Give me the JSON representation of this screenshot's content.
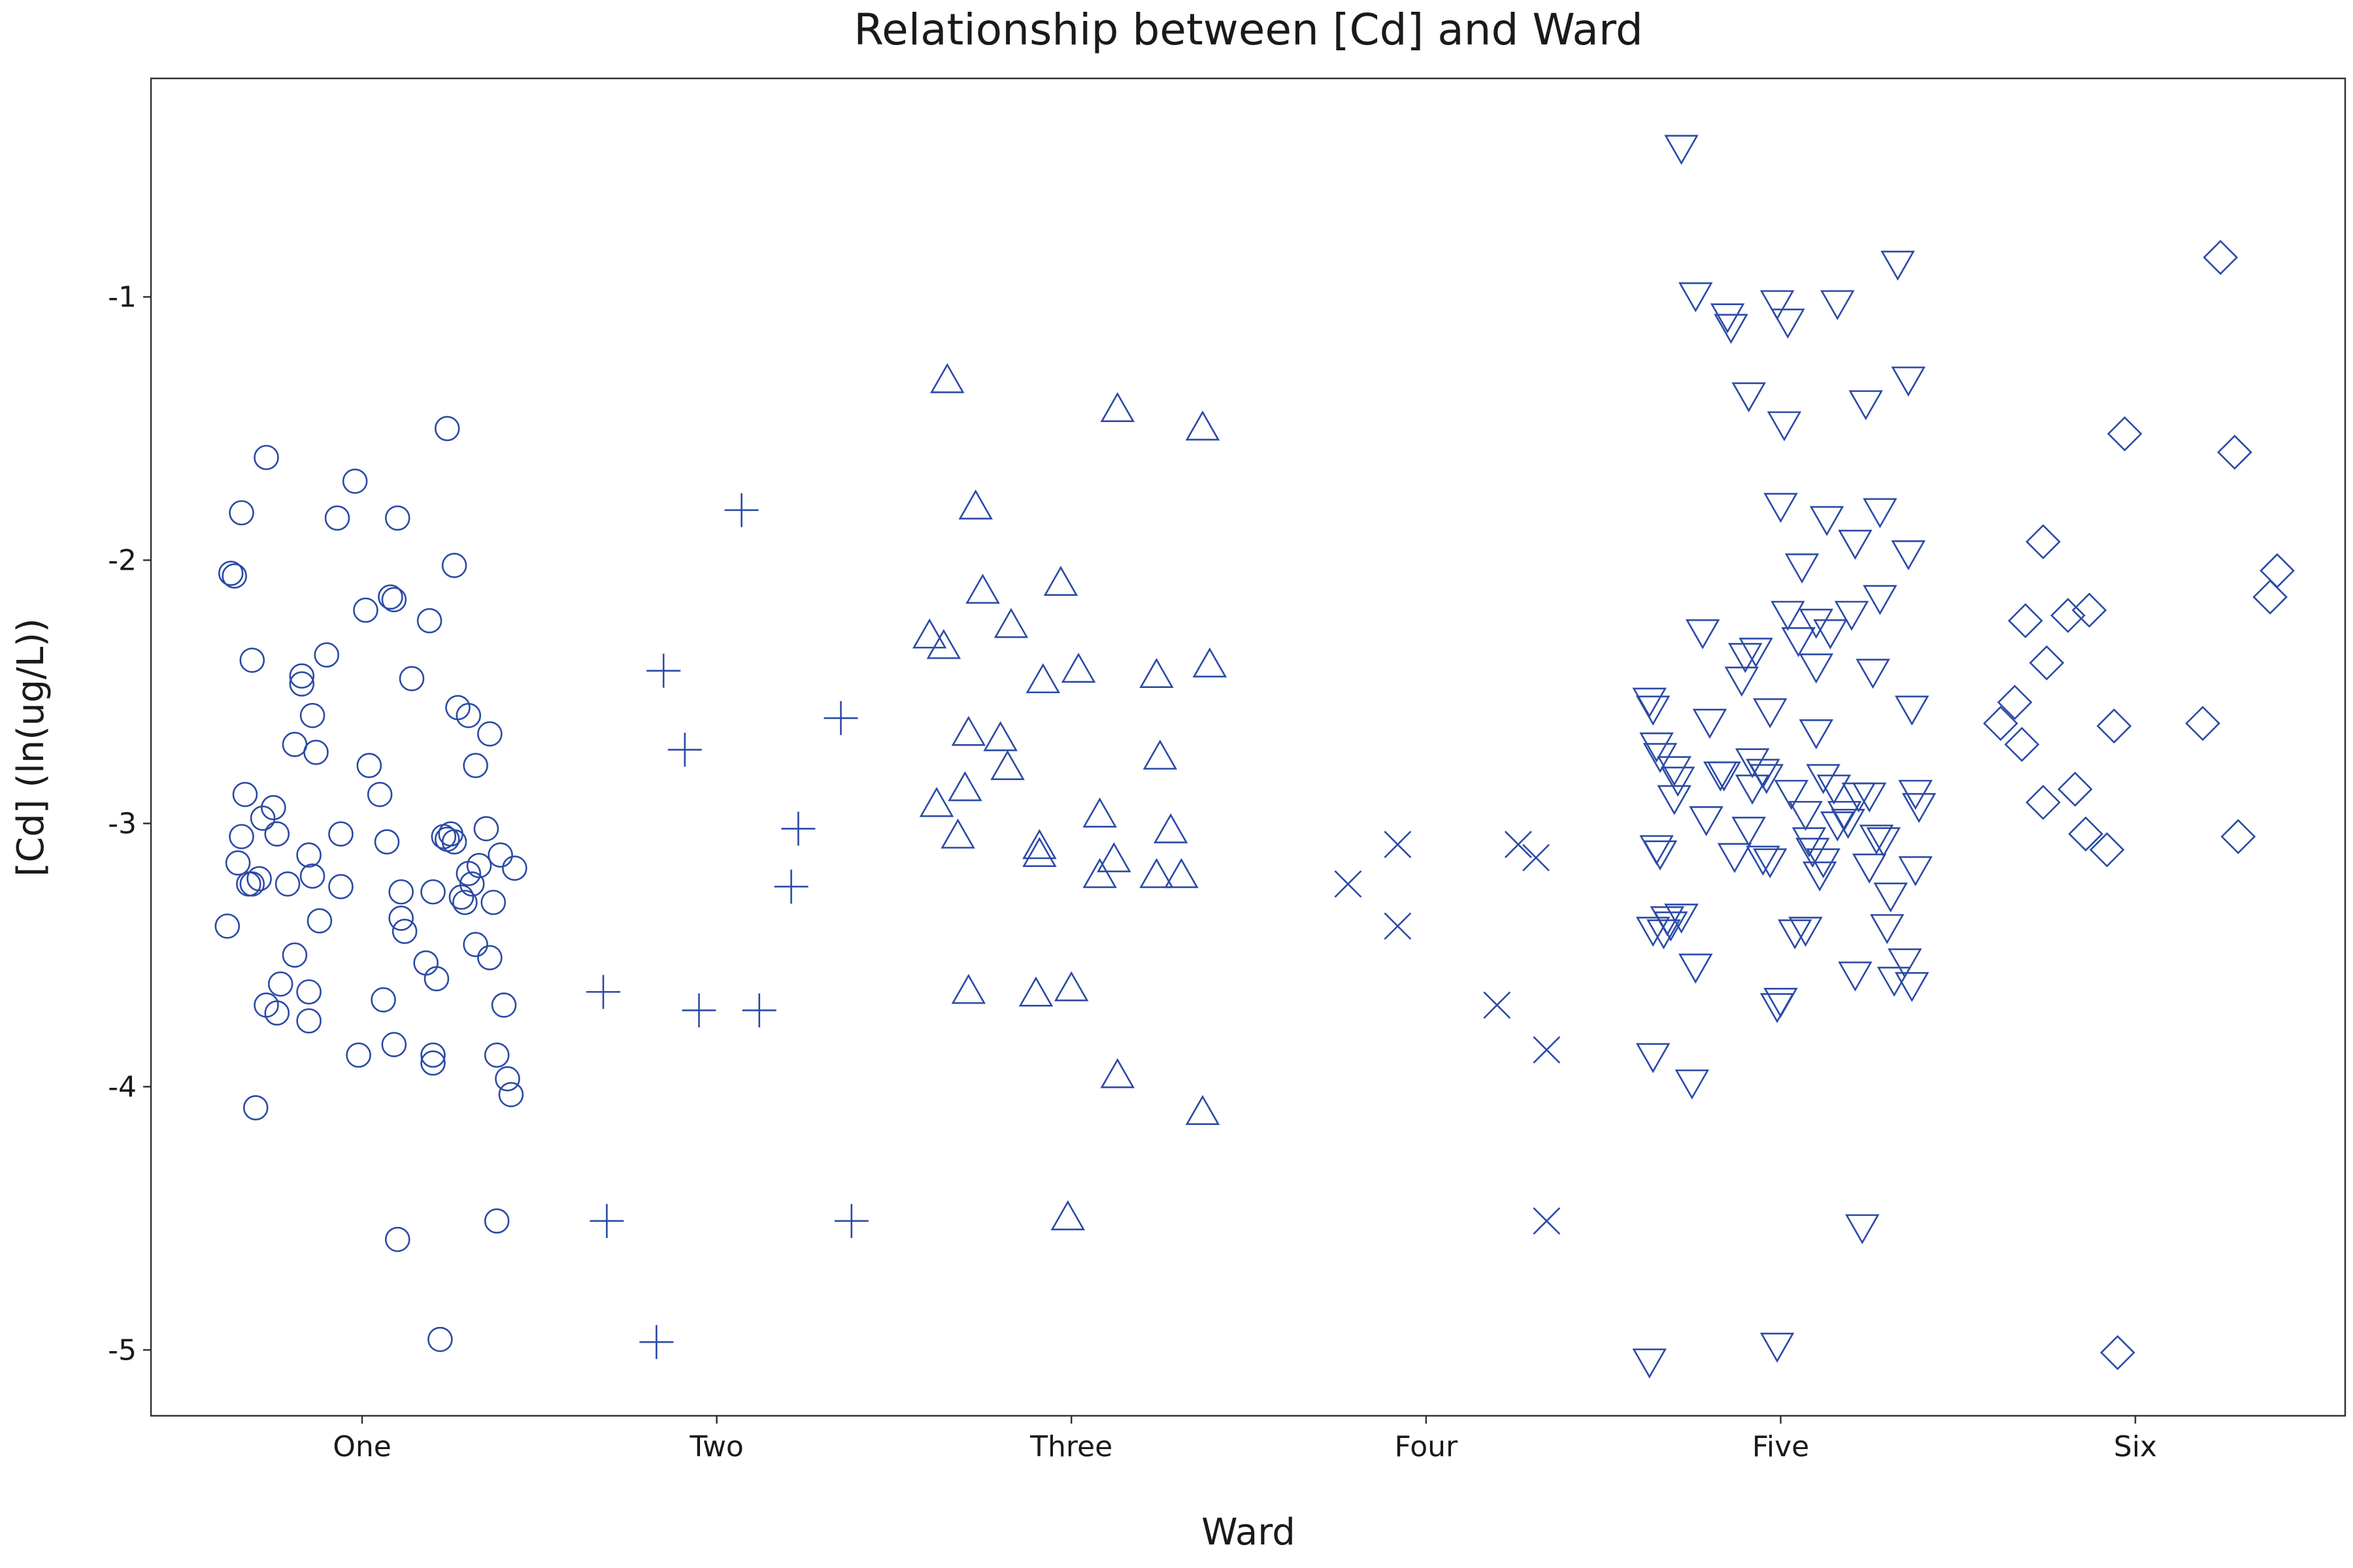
{
  "chart_data": {
    "type": "scatter",
    "title": "Relationship between [Cd] and Ward",
    "xlabel": "Ward",
    "ylabel": "[Cd] (ln(ug/L))",
    "categories": [
      "One",
      "Two",
      "Three",
      "Four",
      "Five",
      "Six"
    ],
    "ylim": [
      -5.25,
      -0.17
    ],
    "yticks": [
      -5,
      -4,
      -3,
      -2,
      -1
    ],
    "ytick_labels": [
      "-5",
      "-4",
      "-3",
      "-2",
      "-1"
    ],
    "grid": false,
    "legend": "none",
    "point_color": "#2b4aa6",
    "series": [
      {
        "category": "One",
        "marker": "circle",
        "points": [
          [
            -0.37,
            -2.05
          ],
          [
            -0.36,
            -2.06
          ],
          [
            -0.34,
            -1.82
          ],
          [
            -0.35,
            -3.15
          ],
          [
            -0.34,
            -3.05
          ],
          [
            -0.33,
            -2.89
          ],
          [
            -0.32,
            -3.23
          ],
          [
            -0.31,
            -2.38
          ],
          [
            -0.3,
            -4.08
          ],
          [
            -0.29,
            -3.21
          ],
          [
            -0.28,
            -2.98
          ],
          [
            -0.27,
            -3.69
          ],
          [
            -0.27,
            -1.61
          ],
          [
            -0.25,
            -2.94
          ],
          [
            -0.24,
            -3.72
          ],
          [
            -0.23,
            -3.61
          ],
          [
            -0.24,
            -3.04
          ],
          [
            -0.21,
            -3.23
          ],
          [
            -0.19,
            -2.7
          ],
          [
            -0.17,
            -2.44
          ],
          [
            -0.17,
            -2.47
          ],
          [
            -0.15,
            -3.12
          ],
          [
            -0.14,
            -2.59
          ],
          [
            -0.13,
            -2.73
          ],
          [
            -0.15,
            -3.64
          ],
          [
            -0.14,
            -3.2
          ],
          [
            -0.12,
            -3.37
          ],
          [
            -0.1,
            -2.36
          ],
          [
            -0.07,
            -1.84
          ],
          [
            -0.06,
            -3.24
          ],
          [
            -0.06,
            -3.04
          ],
          [
            -0.02,
            -1.7
          ],
          [
            -0.01,
            -3.88
          ],
          [
            0.01,
            -2.19
          ],
          [
            0.02,
            -2.78
          ],
          [
            0.05,
            -2.89
          ],
          [
            0.06,
            -3.67
          ],
          [
            0.07,
            -3.07
          ],
          [
            0.08,
            -2.14
          ],
          [
            0.09,
            -3.84
          ],
          [
            0.1,
            -4.58
          ],
          [
            0.1,
            -1.84
          ],
          [
            0.11,
            -3.36
          ],
          [
            0.12,
            -3.41
          ],
          [
            0.14,
            -2.45
          ],
          [
            0.18,
            -3.53
          ],
          [
            0.19,
            -2.23
          ],
          [
            0.2,
            -3.88
          ],
          [
            0.2,
            -3.91
          ],
          [
            0.22,
            -4.96
          ],
          [
            0.24,
            -3.06
          ],
          [
            0.25,
            -3.04
          ],
          [
            0.24,
            -1.5
          ],
          [
            0.26,
            -2.02
          ],
          [
            0.26,
            -3.07
          ],
          [
            0.27,
            -2.56
          ],
          [
            0.28,
            -3.28
          ],
          [
            0.29,
            -3.3
          ],
          [
            0.3,
            -3.19
          ],
          [
            0.31,
            -3.23
          ],
          [
            0.32,
            -2.78
          ],
          [
            0.32,
            -3.46
          ],
          [
            0.33,
            -3.16
          ],
          [
            0.35,
            -3.02
          ],
          [
            0.36,
            -3.51
          ],
          [
            0.36,
            -2.66
          ],
          [
            0.37,
            -3.3
          ],
          [
            0.38,
            -3.88
          ],
          [
            0.38,
            -4.51
          ],
          [
            0.4,
            -3.69
          ],
          [
            0.41,
            -3.97
          ],
          [
            0.42,
            -4.03
          ],
          [
            0.43,
            -3.17
          ],
          [
            0.39,
            -3.12
          ],
          [
            0.3,
            -2.59
          ],
          [
            0.21,
            -3.59
          ],
          [
            0.2,
            -3.26
          ],
          [
            0.09,
            -2.15
          ],
          [
            -0.38,
            -3.39
          ],
          [
            -0.31,
            -3.23
          ],
          [
            -0.19,
            -3.5
          ],
          [
            -0.15,
            -3.75
          ],
          [
            0.23,
            -3.05
          ],
          [
            0.11,
            -3.26
          ]
        ]
      },
      {
        "category": "Two",
        "marker": "plus",
        "points": [
          [
            -0.32,
            -3.64
          ],
          [
            -0.31,
            -4.51
          ],
          [
            -0.17,
            -4.97
          ],
          [
            -0.15,
            -2.42
          ],
          [
            -0.09,
            -2.72
          ],
          [
            -0.05,
            -3.71
          ],
          [
            0.07,
            -1.81
          ],
          [
            0.12,
            -3.71
          ],
          [
            0.21,
            -3.24
          ],
          [
            0.23,
            -3.02
          ],
          [
            0.35,
            -2.6
          ],
          [
            0.38,
            -4.51
          ]
        ]
      },
      {
        "category": "Three",
        "marker": "triangle-up",
        "points": [
          [
            -0.4,
            -2.29
          ],
          [
            -0.38,
            -2.93
          ],
          [
            -0.36,
            -2.33
          ],
          [
            -0.35,
            -1.32
          ],
          [
            -0.32,
            -3.05
          ],
          [
            -0.3,
            -2.87
          ],
          [
            -0.29,
            -2.66
          ],
          [
            -0.29,
            -3.64
          ],
          [
            -0.27,
            -1.8
          ],
          [
            -0.25,
            -2.12
          ],
          [
            -0.2,
            -2.68
          ],
          [
            -0.18,
            -2.79
          ],
          [
            -0.17,
            -2.25
          ],
          [
            -0.1,
            -3.65
          ],
          [
            -0.09,
            -3.09
          ],
          [
            -0.09,
            -3.12
          ],
          [
            -0.08,
            -2.46
          ],
          [
            -0.03,
            -2.09
          ],
          [
            -0.01,
            -4.5
          ],
          [
            0.0,
            -3.63
          ],
          [
            0.02,
            -2.42
          ],
          [
            0.08,
            -2.97
          ],
          [
            0.08,
            -3.2
          ],
          [
            0.12,
            -3.14
          ],
          [
            0.13,
            -3.96
          ],
          [
            0.13,
            -1.43
          ],
          [
            0.24,
            -3.2
          ],
          [
            0.24,
            -2.44
          ],
          [
            0.25,
            -2.75
          ],
          [
            0.28,
            -3.03
          ],
          [
            0.31,
            -3.2
          ],
          [
            0.37,
            -4.1
          ],
          [
            0.37,
            -1.5
          ],
          [
            0.39,
            -2.4
          ]
        ]
      },
      {
        "category": "Four",
        "marker": "x",
        "points": [
          [
            -0.22,
            -3.23
          ],
          [
            -0.08,
            -3.08
          ],
          [
            -0.08,
            -3.39
          ],
          [
            0.2,
            -3.69
          ],
          [
            0.26,
            -3.08
          ],
          [
            0.31,
            -3.13
          ],
          [
            0.34,
            -3.86
          ],
          [
            0.34,
            -4.51
          ]
        ]
      },
      {
        "category": "Five",
        "marker": "triangle-down",
        "points": [
          [
            -0.37,
            -5.04
          ],
          [
            -0.36,
            -3.4
          ],
          [
            -0.37,
            -2.53
          ],
          [
            -0.36,
            -2.56
          ],
          [
            -0.36,
            -3.88
          ],
          [
            -0.35,
            -3.09
          ],
          [
            -0.34,
            -3.11
          ],
          [
            -0.35,
            -2.7
          ],
          [
            -0.34,
            -2.74
          ],
          [
            -0.33,
            -3.41
          ],
          [
            -0.32,
            -3.36
          ],
          [
            -0.31,
            -3.38
          ],
          [
            -0.3,
            -2.79
          ],
          [
            -0.29,
            -2.83
          ],
          [
            -0.28,
            -0.43
          ],
          [
            -0.28,
            -3.35
          ],
          [
            -0.25,
            -3.98
          ],
          [
            -0.24,
            -3.54
          ],
          [
            -0.24,
            -0.99
          ],
          [
            -0.22,
            -2.27
          ],
          [
            -0.21,
            -2.98
          ],
          [
            -0.2,
            -2.61
          ],
          [
            -0.17,
            -2.81
          ],
          [
            -0.16,
            -2.81
          ],
          [
            -0.15,
            -1.07
          ],
          [
            -0.14,
            -1.11
          ],
          [
            -0.13,
            -3.12
          ],
          [
            -0.11,
            -2.45
          ],
          [
            -0.1,
            -2.36
          ],
          [
            -0.09,
            -3.02
          ],
          [
            -0.09,
            -1.37
          ],
          [
            -0.07,
            -2.34
          ],
          [
            -0.08,
            -2.86
          ],
          [
            -0.08,
            -2.76
          ],
          [
            -0.05,
            -2.8
          ],
          [
            -0.05,
            -3.13
          ],
          [
            -0.04,
            -2.82
          ],
          [
            -0.03,
            -3.14
          ],
          [
            -0.03,
            -2.57
          ],
          [
            -0.01,
            -1.02
          ],
          [
            -0.01,
            -4.98
          ],
          [
            -0.01,
            -3.69
          ],
          [
            0.0,
            -3.67
          ],
          [
            0.01,
            -1.48
          ],
          [
            0.0,
            -1.79
          ],
          [
            0.02,
            -2.2
          ],
          [
            0.02,
            -1.09
          ],
          [
            0.03,
            -2.88
          ],
          [
            0.04,
            -3.41
          ],
          [
            0.05,
            -2.3
          ],
          [
            0.06,
            -2.02
          ],
          [
            0.07,
            -3.4
          ],
          [
            0.07,
            -2.96
          ],
          [
            0.08,
            -3.06
          ],
          [
            0.09,
            -3.1
          ],
          [
            0.1,
            -2.23
          ],
          [
            0.1,
            -2.4
          ],
          [
            0.1,
            -2.65
          ],
          [
            0.11,
            -3.19
          ],
          [
            0.12,
            -2.82
          ],
          [
            0.12,
            -3.14
          ],
          [
            0.13,
            -1.84
          ],
          [
            0.14,
            -2.27
          ],
          [
            0.15,
            -2.86
          ],
          [
            0.16,
            -3.0
          ],
          [
            0.18,
            -2.96
          ],
          [
            0.19,
            -2.99
          ],
          [
            0.2,
            -2.2
          ],
          [
            0.21,
            -1.93
          ],
          [
            0.21,
            -3.57
          ],
          [
            0.22,
            -2.89
          ],
          [
            0.23,
            -4.53
          ],
          [
            0.24,
            -1.4
          ],
          [
            0.25,
            -2.89
          ],
          [
            0.25,
            -3.16
          ],
          [
            0.26,
            -2.42
          ],
          [
            0.27,
            -3.05
          ],
          [
            0.28,
            -2.14
          ],
          [
            0.28,
            -1.81
          ],
          [
            0.29,
            -3.06
          ],
          [
            0.3,
            -3.39
          ],
          [
            0.31,
            -3.27
          ],
          [
            0.32,
            -3.59
          ],
          [
            0.33,
            -0.87
          ],
          [
            0.35,
            -3.52
          ],
          [
            0.36,
            -1.97
          ],
          [
            0.36,
            -1.31
          ],
          [
            0.37,
            -2.56
          ],
          [
            0.37,
            -3.61
          ],
          [
            0.38,
            -2.88
          ],
          [
            0.38,
            -3.17
          ],
          [
            0.39,
            -2.93
          ],
          [
            0.16,
            -1.02
          ],
          [
            -0.3,
            -2.9
          ]
        ]
      },
      {
        "category": "Six",
        "marker": "diamond",
        "points": [
          [
            -0.38,
            -2.62
          ],
          [
            -0.34,
            -2.54
          ],
          [
            -0.32,
            -2.7
          ],
          [
            -0.31,
            -2.23
          ],
          [
            -0.26,
            -2.92
          ],
          [
            -0.26,
            -1.93
          ],
          [
            -0.25,
            -2.39
          ],
          [
            -0.19,
            -2.21
          ],
          [
            -0.17,
            -2.87
          ],
          [
            -0.14,
            -3.04
          ],
          [
            -0.13,
            -2.19
          ],
          [
            -0.08,
            -3.1
          ],
          [
            -0.06,
            -2.63
          ],
          [
            -0.05,
            -5.01
          ],
          [
            -0.03,
            -1.52
          ],
          [
            0.19,
            -2.62
          ],
          [
            0.24,
            -0.85
          ],
          [
            0.28,
            -1.59
          ],
          [
            0.29,
            -3.05
          ],
          [
            0.38,
            -2.14
          ],
          [
            0.4,
            -2.04
          ]
        ]
      }
    ]
  }
}
